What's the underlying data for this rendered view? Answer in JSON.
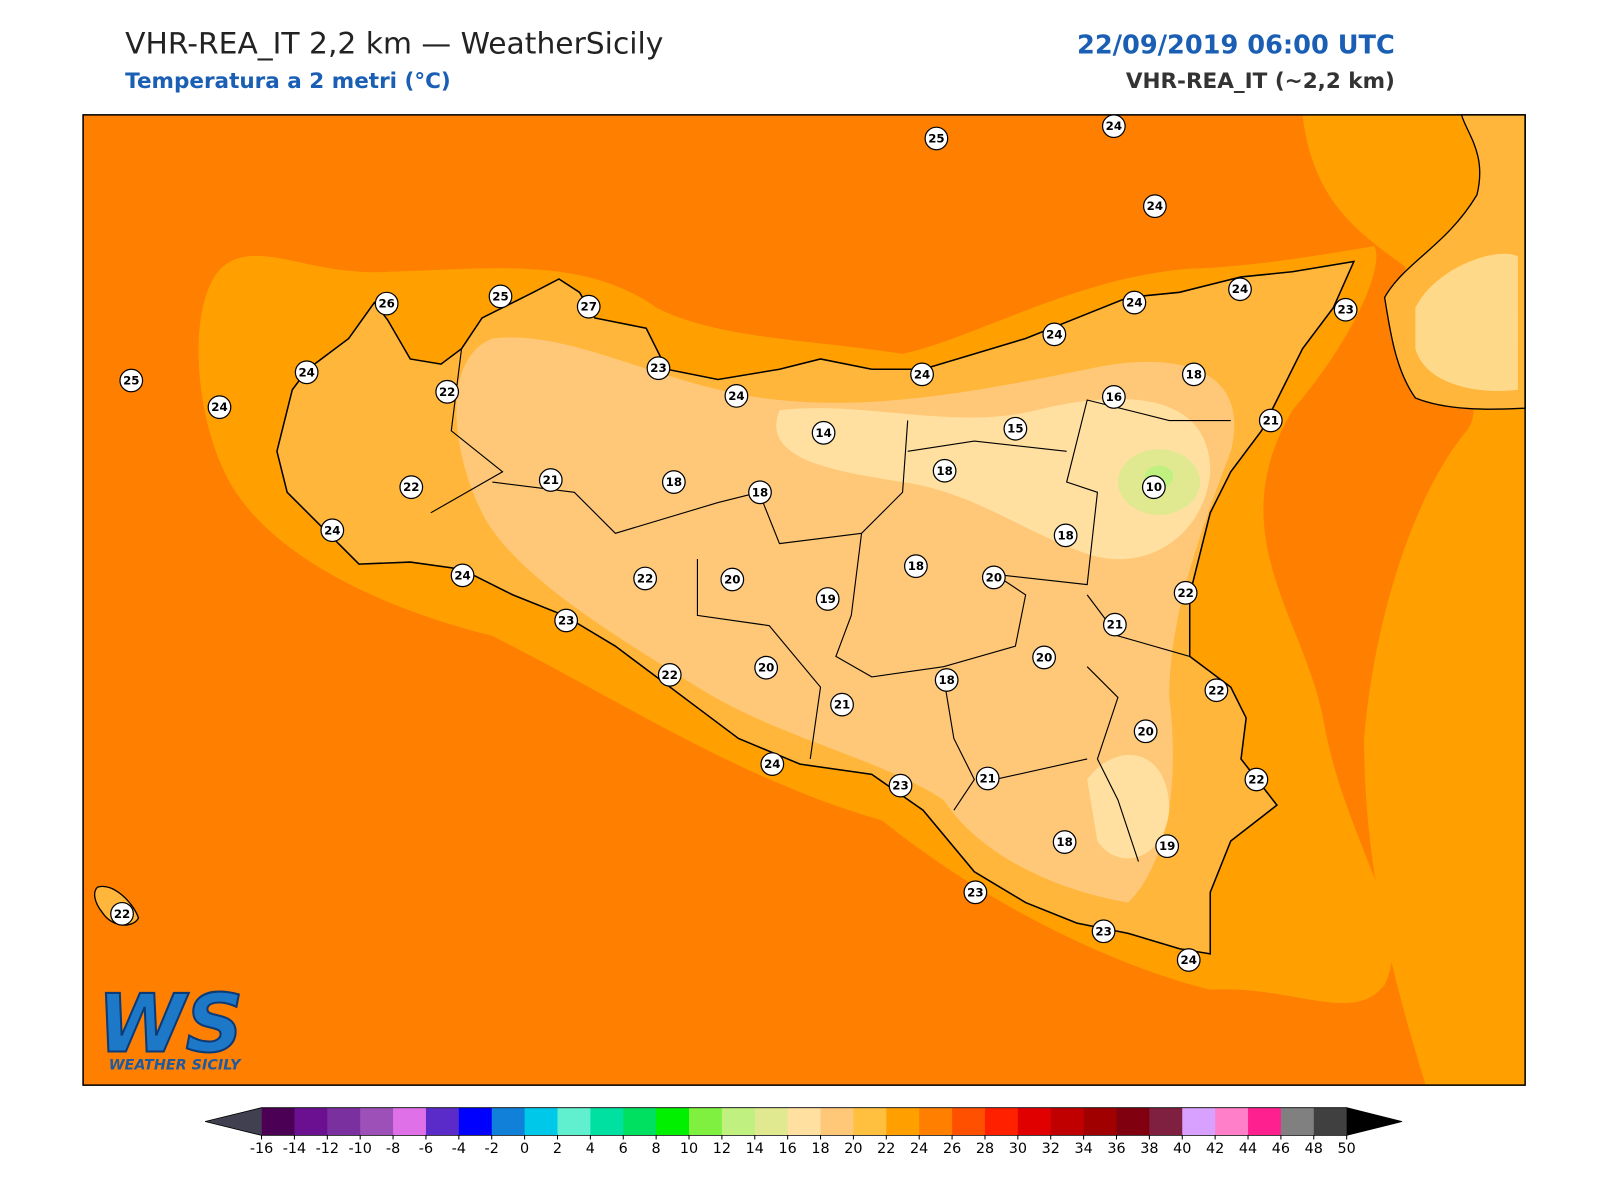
{
  "header": {
    "title": "VHR-REA_IT 2,2 km — WeatherSicily",
    "subtitle": "Temperatura a 2 metri (°C)",
    "datetime": "22/09/2019 06:00 UTC",
    "model": "VHR-REA_IT (~2,2 km)"
  },
  "map": {
    "station_values": [
      25,
      24,
      24,
      26,
      25,
      27,
      24,
      24,
      23,
      24,
      25,
      24,
      22,
      23,
      24,
      24,
      18,
      24,
      16,
      15,
      14,
      21,
      18,
      10,
      22,
      21,
      18,
      18,
      24,
      18,
      24,
      22,
      20,
      18,
      20,
      19,
      22,
      23,
      21,
      20,
      22,
      20,
      18,
      21,
      22,
      20,
      24,
      23,
      21,
      22,
      18,
      19,
      23,
      23,
      24,
      22
    ]
  },
  "colorbar": {
    "ticks": [
      -16,
      -14,
      -12,
      -10,
      -8,
      -6,
      -4,
      -2,
      0,
      2,
      4,
      6,
      8,
      10,
      12,
      14,
      16,
      18,
      20,
      22,
      24,
      26,
      28,
      30,
      32,
      34,
      36,
      38,
      40,
      42,
      44,
      46,
      48,
      50
    ],
    "colors": [
      "#4b0055",
      "#6a1090",
      "#7b30a0",
      "#9c50b8",
      "#e070e8",
      "#5a2bc8",
      "#0000ff",
      "#1080d8",
      "#00c8e8",
      "#60f0d0",
      "#00e0a0",
      "#00e060",
      "#00f000",
      "#80f040",
      "#c0f080",
      "#e0e890",
      "#ffe0a0",
      "#ffc878",
      "#ffc040",
      "#ffa000",
      "#ff8000",
      "#ff5000",
      "#ff2000",
      "#e00000",
      "#c00000",
      "#a00000",
      "#800010",
      "#802040",
      "#d8a0ff",
      "#ff80c8",
      "#ff2090",
      "#808080",
      "#404040"
    ],
    "under_color": "#404050",
    "over_color": "#000000"
  },
  "logo": {
    "text": "WS",
    "caption": "WEATHER SICILY"
  }
}
